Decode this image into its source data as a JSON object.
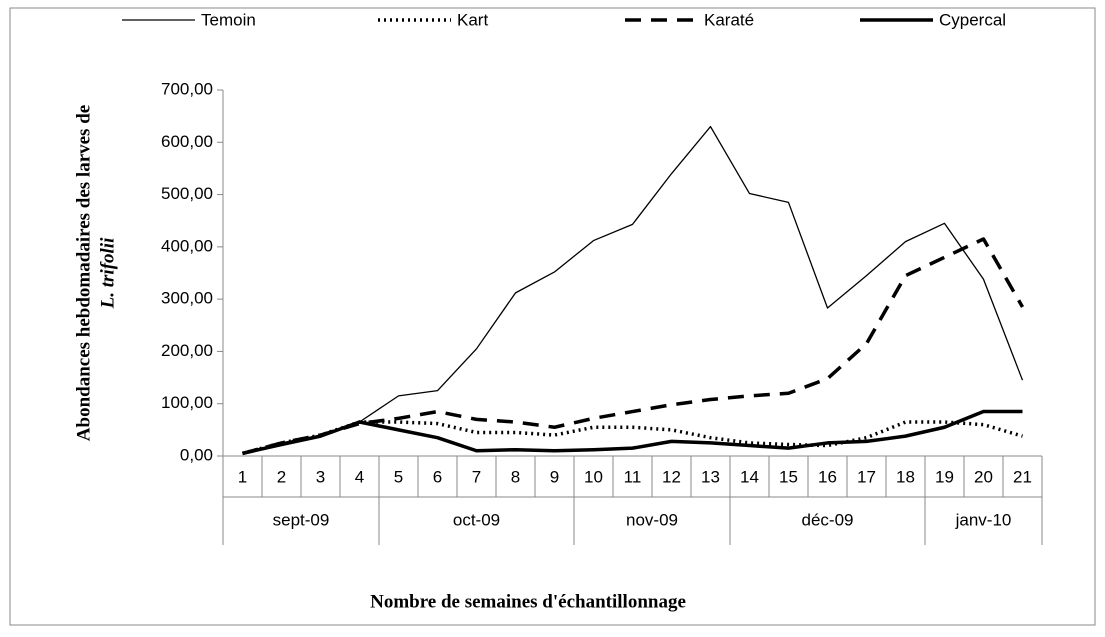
{
  "chart_data": {
    "type": "line",
    "ylabel": [
      "Abondances hebdomadaires des larves de",
      "L. trifolii"
    ],
    "xlabel": "Nombre de semaines d'échantillonnage",
    "categories": [
      "1",
      "2",
      "3",
      "4",
      "5",
      "6",
      "7",
      "8",
      "9",
      "10",
      "11",
      "12",
      "13",
      "14",
      "15",
      "16",
      "17",
      "18",
      "19",
      "20",
      "21"
    ],
    "groups": [
      {
        "label": "sept-09",
        "span": 4
      },
      {
        "label": "oct-09",
        "span": 5
      },
      {
        "label": "nov-09",
        "span": 4
      },
      {
        "label": "déc-09",
        "span": 5
      },
      {
        "label": "janv-10",
        "span": 3
      }
    ],
    "series": [
      {
        "name": "Temoin",
        "color": "#000000",
        "style": "solid",
        "width": 1.3,
        "values": [
          5,
          25,
          40,
          65,
          115,
          125,
          205,
          312,
          352,
          412,
          443,
          540,
          630,
          502,
          485,
          283,
          345,
          410,
          445,
          338,
          145
        ]
      },
      {
        "name": "Kart",
        "color": "#000000",
        "style": "dotted",
        "width": 3.5,
        "values": [
          5,
          25,
          40,
          65,
          65,
          62,
          45,
          45,
          40,
          55,
          55,
          50,
          35,
          25,
          22,
          20,
          35,
          65,
          65,
          60,
          38
        ]
      },
      {
        "name": "Karaté",
        "color": "#000000",
        "style": "dashed",
        "width": 3.5,
        "values": [
          5,
          25,
          40,
          62,
          72,
          85,
          70,
          65,
          55,
          72,
          85,
          98,
          108,
          115,
          120,
          148,
          215,
          345,
          380,
          415,
          285
        ]
      },
      {
        "name": "Cypercal",
        "color": "#000000",
        "style": "solid",
        "width": 3.5,
        "values": [
          5,
          22,
          38,
          65,
          50,
          35,
          10,
          12,
          10,
          12,
          15,
          28,
          25,
          20,
          15,
          25,
          28,
          38,
          55,
          85,
          85
        ]
      }
    ],
    "ylim": [
      0,
      700
    ],
    "yticks": [
      {
        "value": 0,
        "label": "0,00"
      },
      {
        "value": 100,
        "label": "100,00"
      },
      {
        "value": 200,
        "label": "200,00"
      },
      {
        "value": 300,
        "label": "300,00"
      },
      {
        "value": 400,
        "label": "400,00"
      },
      {
        "value": 500,
        "label": "500,00"
      },
      {
        "value": 600,
        "label": "600,00"
      },
      {
        "value": 700,
        "label": "700,00"
      }
    ],
    "grid": false
  }
}
